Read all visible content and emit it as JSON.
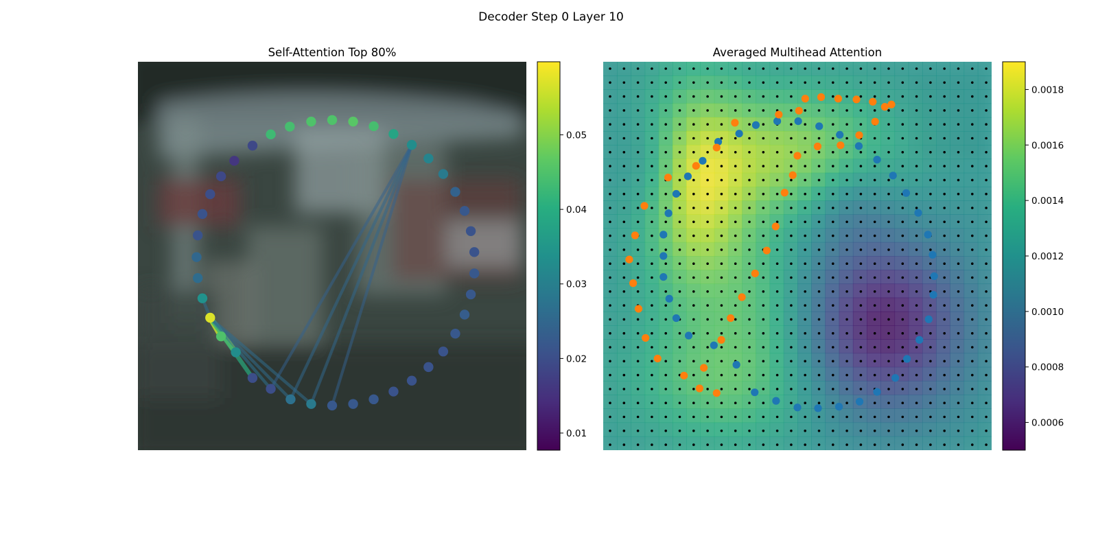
{
  "figure": {
    "suptitle": "Decoder Step 0 Layer 10"
  },
  "chart_data": [
    {
      "type": "scatter",
      "title": "Self-Attention Top 80%",
      "axes_visible": false,
      "xlim": [
        0,
        1
      ],
      "ylim": [
        0,
        1
      ],
      "background_image": "blurred photo of a vehicle / railing scene (dark teal-grey tones)",
      "colormap": "viridis",
      "colorbar": {
        "range": [
          0.0077,
          0.0598
        ],
        "ticks": [
          "0.01",
          "0.02",
          "0.03",
          "0.04",
          "0.05"
        ],
        "tick_values": [
          0.01,
          0.02,
          0.03,
          0.04,
          0.05
        ]
      },
      "points": [
        {
          "x": 0.5,
          "y": 0.85,
          "v": 0.045
        },
        {
          "x": 0.554,
          "y": 0.846,
          "v": 0.046
        },
        {
          "x": 0.607,
          "y": 0.834,
          "v": 0.044
        },
        {
          "x": 0.658,
          "y": 0.814,
          "v": 0.038
        },
        {
          "x": 0.705,
          "y": 0.786,
          "v": 0.033
        },
        {
          "x": 0.748,
          "y": 0.751,
          "v": 0.031
        },
        {
          "x": 0.786,
          "y": 0.711,
          "v": 0.029
        },
        {
          "x": 0.817,
          "y": 0.665,
          "v": 0.024
        },
        {
          "x": 0.841,
          "y": 0.616,
          "v": 0.022
        },
        {
          "x": 0.857,
          "y": 0.564,
          "v": 0.021
        },
        {
          "x": 0.866,
          "y": 0.51,
          "v": 0.021
        },
        {
          "x": 0.866,
          "y": 0.455,
          "v": 0.022
        },
        {
          "x": 0.857,
          "y": 0.401,
          "v": 0.022
        },
        {
          "x": 0.841,
          "y": 0.349,
          "v": 0.023
        },
        {
          "x": 0.817,
          "y": 0.3,
          "v": 0.022
        },
        {
          "x": 0.786,
          "y": 0.254,
          "v": 0.021
        },
        {
          "x": 0.748,
          "y": 0.214,
          "v": 0.021
        },
        {
          "x": 0.705,
          "y": 0.179,
          "v": 0.021
        },
        {
          "x": 0.658,
          "y": 0.151,
          "v": 0.021
        },
        {
          "x": 0.607,
          "y": 0.131,
          "v": 0.022
        },
        {
          "x": 0.554,
          "y": 0.119,
          "v": 0.022
        },
        {
          "x": 0.5,
          "y": 0.115,
          "v": 0.022
        },
        {
          "x": 0.446,
          "y": 0.119,
          "v": 0.029
        },
        {
          "x": 0.393,
          "y": 0.131,
          "v": 0.027
        },
        {
          "x": 0.342,
          "y": 0.158,
          "v": 0.02
        },
        {
          "x": 0.295,
          "y": 0.186,
          "v": 0.02
        },
        {
          "x": 0.252,
          "y": 0.252,
          "v": 0.033
        },
        {
          "x": 0.214,
          "y": 0.293,
          "v": 0.045
        },
        {
          "x": 0.186,
          "y": 0.341,
          "v": 0.057
        },
        {
          "x": 0.166,
          "y": 0.391,
          "v": 0.034
        },
        {
          "x": 0.154,
          "y": 0.443,
          "v": 0.026
        },
        {
          "x": 0.151,
          "y": 0.497,
          "v": 0.025
        },
        {
          "x": 0.154,
          "y": 0.553,
          "v": 0.021
        },
        {
          "x": 0.166,
          "y": 0.608,
          "v": 0.021
        },
        {
          "x": 0.186,
          "y": 0.659,
          "v": 0.02
        },
        {
          "x": 0.214,
          "y": 0.705,
          "v": 0.019
        },
        {
          "x": 0.248,
          "y": 0.745,
          "v": 0.016
        },
        {
          "x": 0.295,
          "y": 0.784,
          "v": 0.019
        },
        {
          "x": 0.342,
          "y": 0.813,
          "v": 0.043
        },
        {
          "x": 0.391,
          "y": 0.833,
          "v": 0.044
        },
        {
          "x": 0.446,
          "y": 0.846,
          "v": 0.045
        }
      ],
      "edges": [
        {
          "from": 28,
          "to": 27,
          "v": 0.055
        },
        {
          "from": 28,
          "to": 26,
          "v": 0.052
        },
        {
          "from": 28,
          "to": 25,
          "v": 0.04
        },
        {
          "from": 28,
          "to": 24,
          "v": 0.027
        },
        {
          "from": 28,
          "to": 23,
          "v": 0.026
        },
        {
          "from": 28,
          "to": 22,
          "v": 0.026
        },
        {
          "from": 28,
          "to": 29,
          "v": 0.026
        },
        {
          "from": 23,
          "to": 4,
          "v": 0.025
        },
        {
          "from": 22,
          "to": 4,
          "v": 0.025
        },
        {
          "from": 24,
          "to": 4,
          "v": 0.024
        },
        {
          "from": 21,
          "to": 4,
          "v": 0.024
        }
      ]
    },
    {
      "type": "heatmap",
      "title": "Averaged Multihead Attention",
      "axes_visible": false,
      "grid_size": 28,
      "colormap": "viridis",
      "colorbar": {
        "range": [
          0.0005,
          0.0019
        ],
        "ticks": [
          "0.0006",
          "0.0008",
          "0.0010",
          "0.0012",
          "0.0014",
          "0.0016",
          "0.0018"
        ],
        "tick_values": [
          0.0006,
          0.0008,
          0.001,
          0.0012,
          0.0014,
          0.0016,
          0.0018
        ]
      },
      "regions": [
        {
          "x": 0.24,
          "y": 0.34,
          "sx": 0.1,
          "sy": 0.2,
          "a": 0.00055
        },
        {
          "x": 0.5,
          "y": 0.24,
          "sx": 0.17,
          "sy": 0.12,
          "a": 0.00045
        },
        {
          "x": 0.32,
          "y": 0.82,
          "sx": 0.17,
          "sy": 0.12,
          "a": 0.0003
        },
        {
          "x": 0.42,
          "y": 0.6,
          "sx": 0.1,
          "sy": 0.12,
          "a": 0.0002
        },
        {
          "x": 0.72,
          "y": 0.68,
          "sx": 0.15,
          "sy": 0.16,
          "a": -0.00065
        },
        {
          "x": 0.63,
          "y": 0.36,
          "sx": 0.08,
          "sy": 0.09,
          "a": -0.0002
        },
        {
          "x": 0.12,
          "y": 0.27,
          "sx": 0.06,
          "sy": 0.1,
          "a": -0.00015
        }
      ],
      "base_value": 0.0012,
      "series": [
        {
          "name": "",
          "color": "#1f77b4",
          "points": [
            {
              "x": 0.35,
              "y": 0.815
            },
            {
              "x": 0.393,
              "y": 0.837
            },
            {
              "x": 0.448,
              "y": 0.847
            },
            {
              "x": 0.502,
              "y": 0.847
            },
            {
              "x": 0.556,
              "y": 0.834
            },
            {
              "x": 0.609,
              "y": 0.812
            },
            {
              "x": 0.658,
              "y": 0.783
            },
            {
              "x": 0.705,
              "y": 0.748
            },
            {
              "x": 0.746,
              "y": 0.707
            },
            {
              "x": 0.78,
              "y": 0.662
            },
            {
              "x": 0.811,
              "y": 0.611
            },
            {
              "x": 0.836,
              "y": 0.555
            },
            {
              "x": 0.848,
              "y": 0.503
            },
            {
              "x": 0.852,
              "y": 0.448
            },
            {
              "x": 0.85,
              "y": 0.4
            },
            {
              "x": 0.838,
              "y": 0.337
            },
            {
              "x": 0.814,
              "y": 0.284
            },
            {
              "x": 0.782,
              "y": 0.235
            },
            {
              "x": 0.752,
              "y": 0.186
            },
            {
              "x": 0.705,
              "y": 0.15
            },
            {
              "x": 0.66,
              "y": 0.125
            },
            {
              "x": 0.607,
              "y": 0.112
            },
            {
              "x": 0.553,
              "y": 0.108
            },
            {
              "x": 0.5,
              "y": 0.11
            },
            {
              "x": 0.445,
              "y": 0.127
            },
            {
              "x": 0.39,
              "y": 0.149
            },
            {
              "x": 0.343,
              "y": 0.22
            },
            {
              "x": 0.285,
              "y": 0.27
            },
            {
              "x": 0.22,
              "y": 0.295
            },
            {
              "x": 0.188,
              "y": 0.34
            },
            {
              "x": 0.17,
              "y": 0.39
            },
            {
              "x": 0.155,
              "y": 0.446
            },
            {
              "x": 0.155,
              "y": 0.5
            },
            {
              "x": 0.155,
              "y": 0.555
            },
            {
              "x": 0.168,
              "y": 0.61
            },
            {
              "x": 0.188,
              "y": 0.66
            },
            {
              "x": 0.218,
              "y": 0.705
            },
            {
              "x": 0.256,
              "y": 0.745
            },
            {
              "x": 0.296,
              "y": 0.794
            }
          ]
        },
        {
          "name": "",
          "color": "#ff7f0e",
          "points": [
            {
              "x": 0.52,
              "y": 0.905
            },
            {
              "x": 0.561,
              "y": 0.909
            },
            {
              "x": 0.605,
              "y": 0.905
            },
            {
              "x": 0.652,
              "y": 0.903
            },
            {
              "x": 0.694,
              "y": 0.897
            },
            {
              "x": 0.725,
              "y": 0.884
            },
            {
              "x": 0.742,
              "y": 0.89
            },
            {
              "x": 0.7,
              "y": 0.846
            },
            {
              "x": 0.659,
              "y": 0.811
            },
            {
              "x": 0.611,
              "y": 0.785
            },
            {
              "x": 0.552,
              "y": 0.782
            },
            {
              "x": 0.504,
              "y": 0.874
            },
            {
              "x": 0.452,
              "y": 0.864
            },
            {
              "x": 0.339,
              "y": 0.843
            },
            {
              "x": 0.292,
              "y": 0.779
            },
            {
              "x": 0.239,
              "y": 0.732
            },
            {
              "x": 0.167,
              "y": 0.702
            },
            {
              "x": 0.106,
              "y": 0.629
            },
            {
              "x": 0.082,
              "y": 0.553
            },
            {
              "x": 0.067,
              "y": 0.491
            },
            {
              "x": 0.077,
              "y": 0.43
            },
            {
              "x": 0.091,
              "y": 0.364
            },
            {
              "x": 0.109,
              "y": 0.289
            },
            {
              "x": 0.14,
              "y": 0.236
            },
            {
              "x": 0.208,
              "y": 0.192
            },
            {
              "x": 0.248,
              "y": 0.159
            },
            {
              "x": 0.292,
              "y": 0.147
            },
            {
              "x": 0.259,
              "y": 0.212
            },
            {
              "x": 0.304,
              "y": 0.284
            },
            {
              "x": 0.328,
              "y": 0.34
            },
            {
              "x": 0.357,
              "y": 0.394
            },
            {
              "x": 0.391,
              "y": 0.455
            },
            {
              "x": 0.421,
              "y": 0.514
            },
            {
              "x": 0.444,
              "y": 0.576
            },
            {
              "x": 0.467,
              "y": 0.663
            },
            {
              "x": 0.488,
              "y": 0.708
            },
            {
              "x": 0.5,
              "y": 0.758
            }
          ]
        },
        {
          "name": "",
          "color": "#000000",
          "marker": "small-dot",
          "grid": 28,
          "points": []
        }
      ]
    }
  ]
}
